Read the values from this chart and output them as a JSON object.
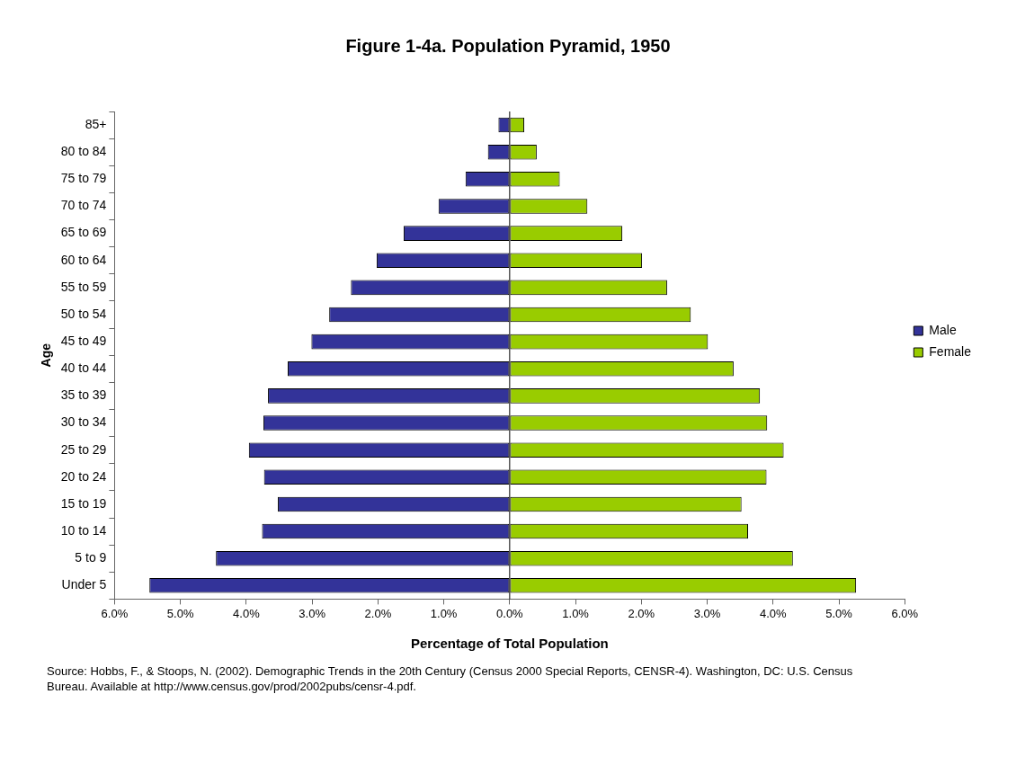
{
  "chart_data": {
    "type": "bar",
    "orientation": "horizontal",
    "stacked": true,
    "title": "Figure 1-4a. Population Pyramid, 1950",
    "xlabel": "Percentage of Total Population",
    "ylabel": "Age",
    "categories": [
      "85+",
      "80 to 84",
      "75 to 79",
      "70 to 74",
      "65 to 69",
      "60 to 64",
      "55 to 59",
      "50 to 54",
      "45 to 49",
      "40 to 44",
      "35 to 39",
      "30 to 34",
      "25 to 29",
      "20 to 24",
      "15 to 19",
      "10 to 14",
      "5 to 9",
      "Under 5"
    ],
    "series": [
      {
        "name": "Male",
        "color": "#333399",
        "values": [
          -0.17,
          -0.33,
          -0.67,
          -1.08,
          -1.61,
          -2.02,
          -2.41,
          -2.74,
          -3.01,
          -3.37,
          -3.67,
          -3.74,
          -3.96,
          -3.73,
          -3.52,
          -3.76,
          -4.46,
          -5.47
        ]
      },
      {
        "name": "Female",
        "color": "#99cc00",
        "values": [
          0.22,
          0.41,
          0.76,
          1.18,
          1.71,
          2.01,
          2.39,
          2.75,
          3.01,
          3.4,
          3.8,
          3.91,
          4.16,
          3.9,
          3.52,
          3.62,
          4.3,
          5.26
        ]
      }
    ],
    "xlim": [
      -6,
      6
    ],
    "xticks": [
      {
        "value": -6,
        "label": "6.0%"
      },
      {
        "value": -5,
        "label": "5.0%"
      },
      {
        "value": -4,
        "label": "4.0%"
      },
      {
        "value": -3,
        "label": "3.0%"
      },
      {
        "value": -2,
        "label": "2.0%"
      },
      {
        "value": -1,
        "label": "1.0%"
      },
      {
        "value": 0,
        "label": "0.0%"
      },
      {
        "value": 1,
        "label": "1.0%"
      },
      {
        "value": 2,
        "label": "2.0%"
      },
      {
        "value": 3,
        "label": "3.0%"
      },
      {
        "value": 4,
        "label": "4.0%"
      },
      {
        "value": 5,
        "label": "5.0%"
      },
      {
        "value": 6,
        "label": "6.0%"
      }
    ],
    "grid": false,
    "legend": "right",
    "ref_lines": [
      {
        "axis": "x",
        "value": 0,
        "color": "#000000"
      }
    ],
    "annotations": [
      "Source: Hobbs, F., & Stoops, N. (2002). Demographic Trends in the 20th Century (Census 2000 Special Reports, CENSR-4). Washington, DC: U.S. Census Bureau. Available at http://www.census.gov/prod/2002pubs/censr-4.pdf."
    ]
  }
}
